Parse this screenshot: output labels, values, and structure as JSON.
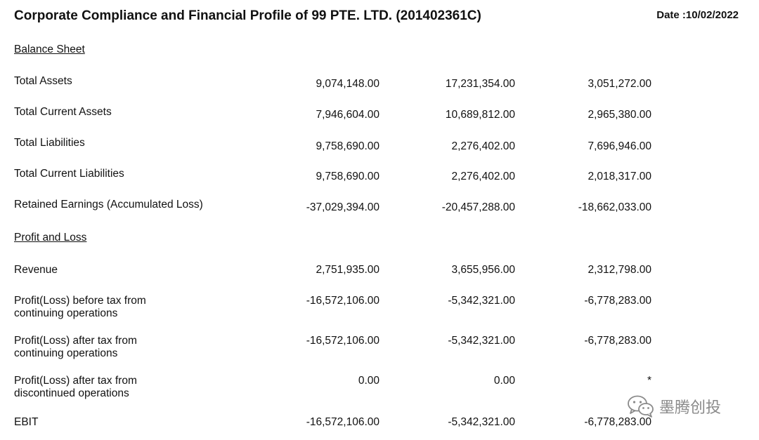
{
  "header": {
    "title": "Corporate Compliance and Financial Profile of 99 PTE. LTD. (201402361C)",
    "date": "Date :10/02/2022"
  },
  "balance_sheet": {
    "heading": "Balance Sheet",
    "rows": [
      {
        "label": "Total Assets",
        "values": [
          "9,074,148.00",
          "17,231,354.00",
          "3,051,272.00"
        ]
      },
      {
        "label": "Total Current Assets",
        "values": [
          "7,946,604.00",
          "10,689,812.00",
          "2,965,380.00"
        ]
      },
      {
        "label": "Total Liabilities",
        "values": [
          "9,758,690.00",
          "2,276,402.00",
          "7,696,946.00"
        ]
      },
      {
        "label": "Total Current Liabilities",
        "values": [
          "9,758,690.00",
          "2,276,402.00",
          "2,018,317.00"
        ]
      },
      {
        "label": "Retained Earnings (Accumulated Loss)",
        "values": [
          "-37,029,394.00",
          "-20,457,288.00",
          "-18,662,033.00"
        ]
      }
    ]
  },
  "profit_loss": {
    "heading": "Profit and Loss",
    "rows": [
      {
        "label": "Revenue",
        "values": [
          "2,751,935.00",
          "3,655,956.00",
          "2,312,798.00"
        ]
      },
      {
        "label_line1": "Profit(Loss) before tax from",
        "label_line2": "continuing operations",
        "values": [
          "-16,572,106.00",
          "-5,342,321.00",
          "-6,778,283.00"
        ]
      },
      {
        "label_line1": "Profit(Loss) after tax from",
        "label_line2": "continuing operations",
        "values": [
          "-16,572,106.00",
          "-5,342,321.00",
          "-6,778,283.00"
        ]
      },
      {
        "label_line1": "Profit(Loss) after tax from",
        "label_line2": "discontinued operations",
        "values": [
          "0.00",
          "0.00",
          "*"
        ]
      },
      {
        "label": "EBIT",
        "values": [
          "-16,572,106.00",
          "-5,342,321.00",
          "-6,778,283.00"
        ]
      }
    ]
  },
  "watermark": {
    "icon": "wechat-icon",
    "text": "墨腾创投",
    "color": "#8a8a8a"
  }
}
